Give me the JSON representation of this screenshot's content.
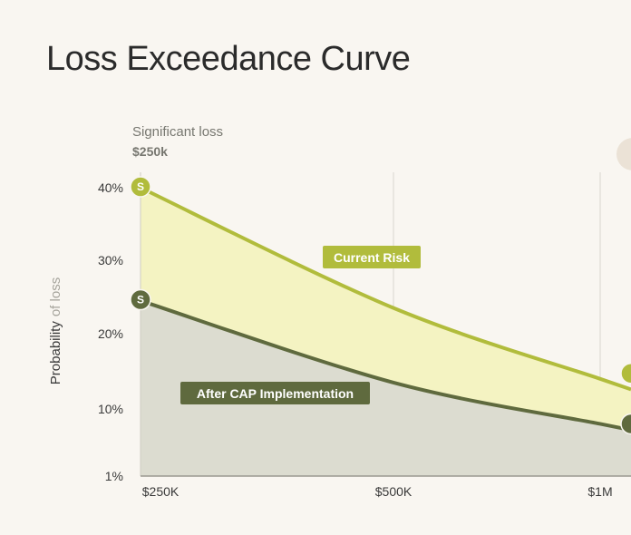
{
  "chart_data": {
    "type": "area",
    "title": "Loss Exceedance Curve",
    "ylabel_main": "Probability",
    "ylabel_suffix": "of loss",
    "annotation": {
      "label": "Significant loss",
      "value": "$250k",
      "marker": "S"
    },
    "x_ticks": [
      "$250K",
      "$500K",
      "$1M"
    ],
    "y_ticks": [
      "40%",
      "30%",
      "20%",
      "10%",
      "1%"
    ],
    "grid": true,
    "series": [
      {
        "name": "Current Risk",
        "color": "#b1bc3c",
        "fill": "#f4f3c2",
        "points": [
          {
            "x": "$250K",
            "y": 40
          },
          {
            "x": "$500K",
            "y": 23.5
          },
          {
            "x": "$1M",
            "y": 14
          }
        ]
      },
      {
        "name": "After CAP Implementation",
        "color": "#5f6a3e",
        "fill": "#dcdcd0",
        "points": [
          {
            "x": "$250K",
            "y": 24.5
          },
          {
            "x": "$500K",
            "y": 13.5
          },
          {
            "x": "$1M",
            "y": 8
          }
        ]
      }
    ]
  }
}
